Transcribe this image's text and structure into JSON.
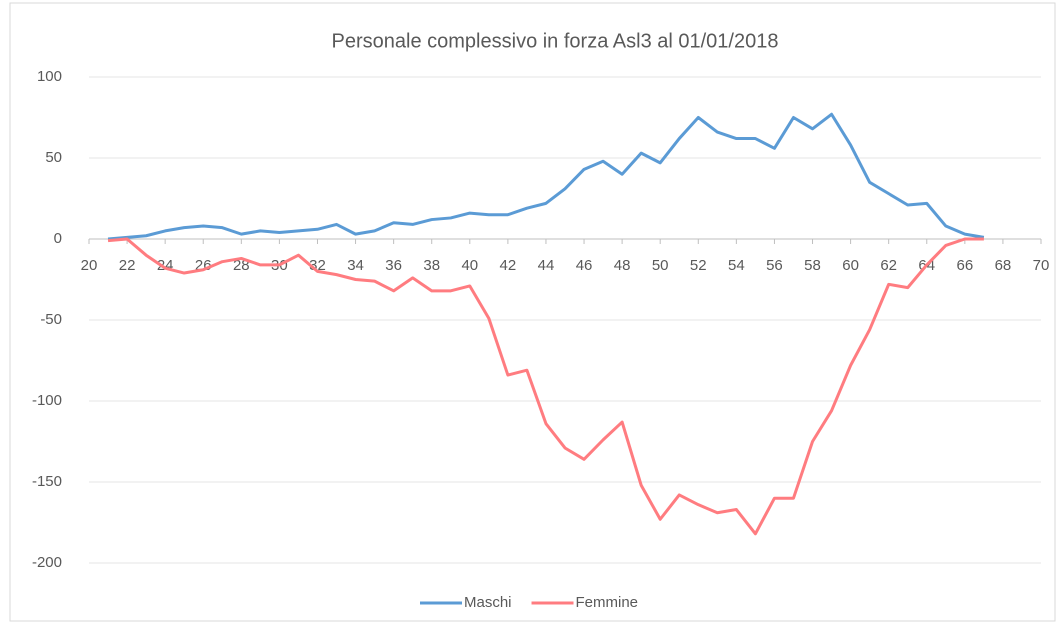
{
  "chart_data": {
    "type": "line",
    "title": "Personale complessivo in forza Asl3 al 01/01/2018",
    "x": [
      21,
      22,
      23,
      24,
      25,
      26,
      27,
      28,
      29,
      30,
      31,
      32,
      33,
      34,
      35,
      36,
      37,
      38,
      39,
      40,
      41,
      42,
      43,
      44,
      45,
      46,
      47,
      48,
      49,
      50,
      51,
      52,
      53,
      54,
      55,
      56,
      57,
      58,
      59,
      60,
      61,
      62,
      63,
      64,
      65,
      66,
      67
    ],
    "series": [
      {
        "name": "Maschi",
        "color": "#5b9bd5",
        "values": [
          0,
          1,
          2,
          5,
          7,
          8,
          7,
          3,
          5,
          4,
          5,
          6,
          9,
          3,
          5,
          10,
          9,
          12,
          13,
          16,
          15,
          15,
          19,
          22,
          31,
          43,
          48,
          40,
          53,
          47,
          62,
          75,
          66,
          62,
          62,
          56,
          75,
          68,
          77,
          58,
          35,
          28,
          21,
          22,
          8,
          3,
          1
        ]
      },
      {
        "name": "Femmine",
        "color": "#ff7c80",
        "values": [
          -1,
          0,
          -10,
          -18,
          -21,
          -19,
          -14,
          -12,
          -16,
          -16,
          -10,
          -20,
          -22,
          -25,
          -26,
          -32,
          -24,
          -32,
          -32,
          -29,
          -49,
          -84,
          -81,
          -114,
          -129,
          -136,
          -124,
          -113,
          -152,
          -173,
          -158,
          -164,
          -169,
          -167,
          -182,
          -160,
          -160,
          -125,
          -106,
          -78,
          -56,
          -28,
          -30,
          -16,
          -4,
          0,
          0
        ]
      }
    ],
    "xlim": [
      20,
      70
    ],
    "xticks": [
      20,
      22,
      24,
      26,
      28,
      30,
      32,
      34,
      36,
      38,
      40,
      42,
      44,
      46,
      48,
      50,
      52,
      54,
      56,
      58,
      60,
      62,
      64,
      66,
      68,
      70
    ],
    "ylim": [
      -200,
      100
    ],
    "yticks": [
      100,
      50,
      0,
      -50,
      -100,
      -150,
      -200
    ],
    "grid": true,
    "legend": "bottom"
  }
}
